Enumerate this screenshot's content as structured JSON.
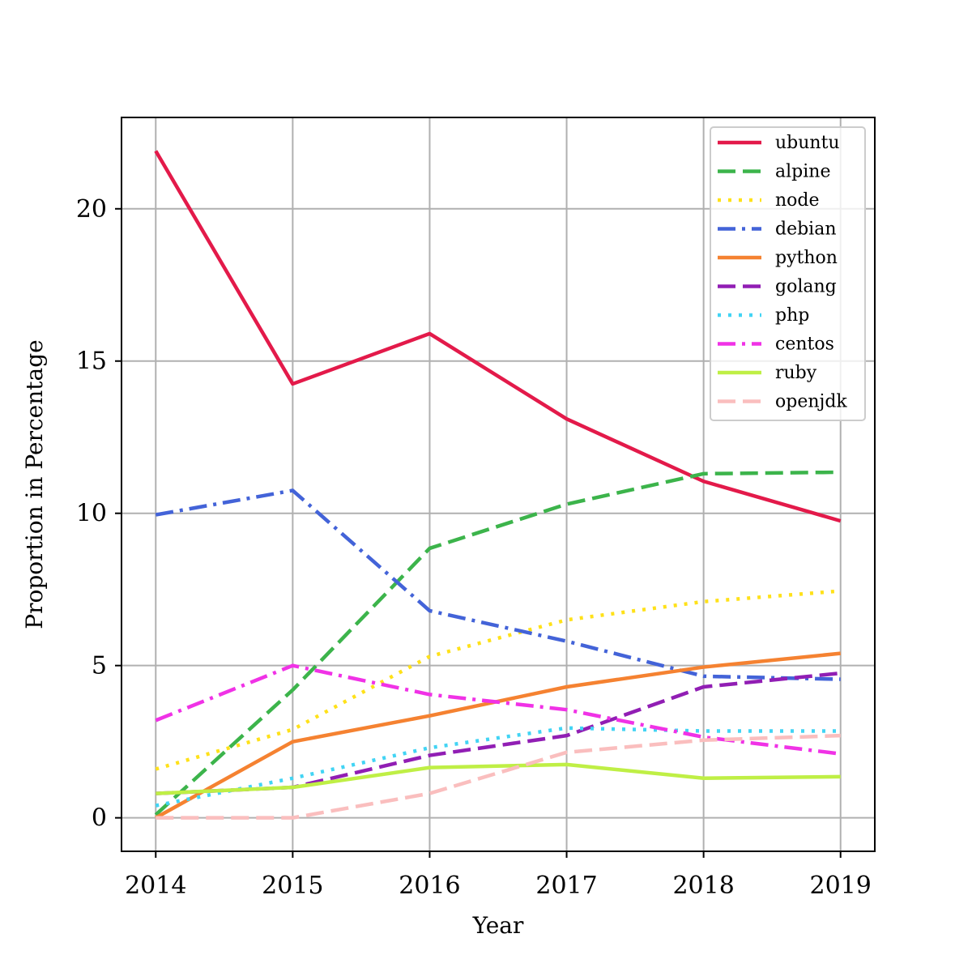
{
  "chart_data": {
    "type": "line",
    "title": "",
    "xlabel": "Year",
    "ylabel": "Proportion in Percentage",
    "x": [
      2014,
      2015,
      2016,
      2017,
      2018,
      2019
    ],
    "xlim": [
      2013.75,
      2019.25
    ],
    "ylim": [
      -1.1,
      23.0
    ],
    "yticks": [
      0,
      5,
      10,
      15,
      20
    ],
    "grid": true,
    "legend_position": "top-right",
    "series": [
      {
        "name": "ubuntu",
        "color": "#e31a4a",
        "dash": "solid",
        "values": [
          21.9,
          14.25,
          15.9,
          13.1,
          11.05,
          9.75
        ]
      },
      {
        "name": "alpine",
        "color": "#3cb44b",
        "dash": "dashed",
        "values": [
          0.1,
          4.2,
          8.85,
          10.3,
          11.3,
          11.35
        ]
      },
      {
        "name": "node",
        "color": "#ffe119",
        "dash": "dotted",
        "values": [
          1.6,
          2.9,
          5.3,
          6.5,
          7.1,
          7.45
        ]
      },
      {
        "name": "debian",
        "color": "#4363d8",
        "dash": "dashdot",
        "values": [
          9.95,
          10.75,
          6.8,
          5.8,
          4.65,
          4.55
        ]
      },
      {
        "name": "python",
        "color": "#f58231",
        "dash": "solid",
        "values": [
          0.0,
          2.5,
          3.35,
          4.3,
          4.95,
          5.4
        ]
      },
      {
        "name": "golang",
        "color": "#911eb4",
        "dash": "dashed",
        "values": [
          0.8,
          1.0,
          2.05,
          2.7,
          4.3,
          4.75
        ]
      },
      {
        "name": "php",
        "color": "#42d4f4",
        "dash": "dotted",
        "values": [
          0.4,
          1.3,
          2.3,
          2.95,
          2.85,
          2.85
        ]
      },
      {
        "name": "centos",
        "color": "#f032e6",
        "dash": "dashdot",
        "values": [
          3.2,
          5.0,
          4.05,
          3.55,
          2.65,
          2.1
        ]
      },
      {
        "name": "ruby",
        "color": "#bfef45",
        "dash": "solid",
        "values": [
          0.8,
          1.0,
          1.65,
          1.75,
          1.3,
          1.35
        ]
      },
      {
        "name": "openjdk",
        "color": "#fabebe",
        "dash": "dashed",
        "values": [
          0.0,
          0.0,
          0.8,
          2.15,
          2.55,
          2.7
        ]
      }
    ]
  }
}
